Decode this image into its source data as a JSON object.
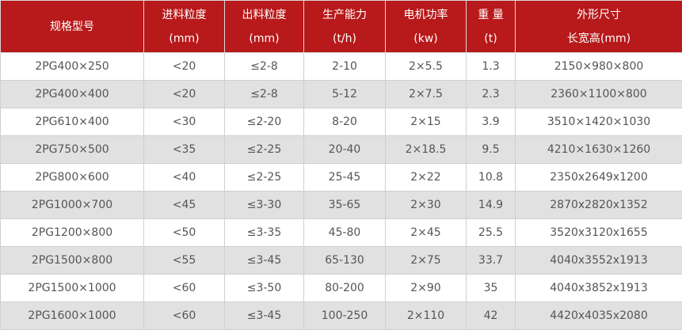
{
  "colors": {
    "header_bg": "#b8191a",
    "alt_row": "#e1e1e1"
  },
  "headers": [
    [
      "规格型号",
      ""
    ],
    [
      "进料粒度",
      "(mm)"
    ],
    [
      "出料粒度",
      "(mm)"
    ],
    [
      "生产能力",
      "(t/h)"
    ],
    [
      "电机功率",
      "(kw)"
    ],
    [
      "重 量",
      "(t)"
    ],
    [
      "外形尺寸",
      "长宽高(mm)"
    ]
  ],
  "rows": [
    [
      "2PG400×250",
      "<20",
      "≤2-8",
      "2-10",
      "2×5.5",
      "1.3",
      "2150×980×800"
    ],
    [
      "2PG400×400",
      "<20",
      "≤2-8",
      "5-12",
      "2×7.5",
      "2.3",
      "2360×1100×800"
    ],
    [
      "2PG610×400",
      "<30",
      "≤2-20",
      "8-20",
      "2×15",
      "3.9",
      "3510×1420×1030"
    ],
    [
      "2PG750×500",
      "<35",
      "≤2-25",
      "20-40",
      "2×18.5",
      "9.5",
      "4210×1630×1260"
    ],
    [
      "2PG800×600",
      "<40",
      "≤2-25",
      "25-45",
      "2×22",
      "10.8",
      "2350x2649x1200"
    ],
    [
      "2PG1000×700",
      "<45",
      "≤3-30",
      "35-65",
      "2×30",
      "14.9",
      "2870x2820x1352"
    ],
    [
      "2PG1200×800",
      "<50",
      "≤3-35",
      "45-80",
      "2×45",
      "25.5",
      "3520x3120x1655"
    ],
    [
      "2PG1500×800",
      "<55",
      "≤3-45",
      "65-130",
      "2×75",
      "33.7",
      "4040x3552x1913"
    ],
    [
      "2PG1500×1000",
      "<60",
      "≤3-50",
      "80-200",
      "2×90",
      "35",
      "4040x3852x1913"
    ],
    [
      "2PG1600×1000",
      "<60",
      "≤3-45",
      "100-250",
      "2×110",
      "42",
      "4420x4035x2080"
    ]
  ]
}
